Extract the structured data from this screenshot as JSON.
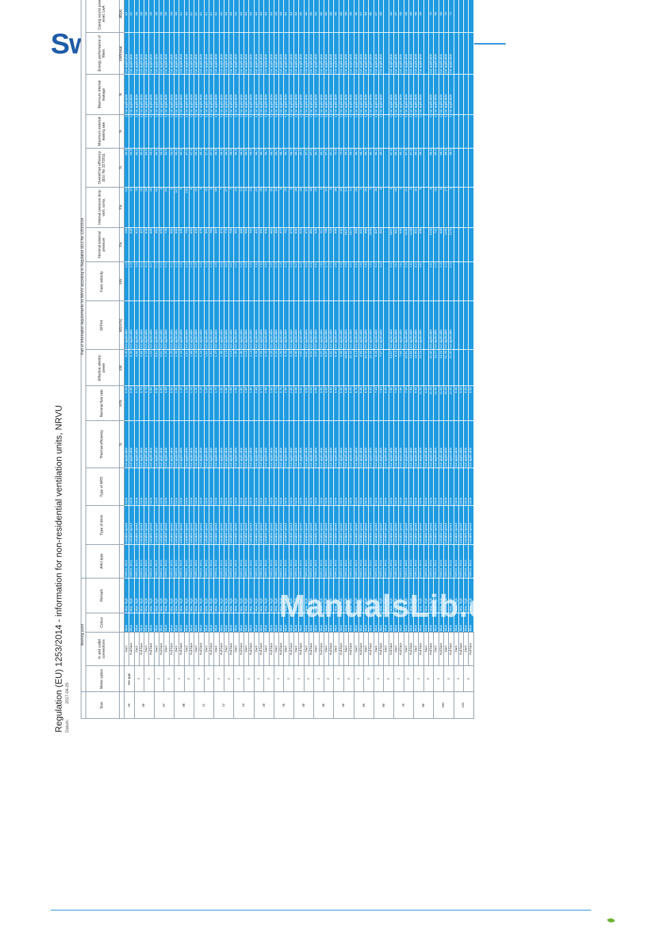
{
  "brand": {
    "name": "Swegon"
  },
  "document": {
    "title": "Regulation (EU) 1253/2014 - information for non-residential ventilation units, NRVU",
    "date_label": "Datum:",
    "date": "2017-04-25"
  },
  "table": {
    "group_header": "Part of information requirements for NRVU according to Regulation (EU) No 1253/2014",
    "working_point": "Working point",
    "columns": [
      "Size",
      "Motor option",
      "In and outlet connections",
      "Colour",
      "Remark",
      "AHU type",
      "Type of drive",
      "Type of HRS",
      "Thermal efficiency",
      "Nominal flow rate",
      "Effective electric power",
      "SFPint",
      "Face velocity",
      "Nominal external pressure",
      "Internal pressure drop vent. comp.",
      "Overall fan efficiency (EU) No 327/2011",
      "Maximum external leaking rate",
      "Maximum internal leakage",
      "Energy performance of filters",
      "Casing sound power level, LwA"
    ],
    "units": [
      "",
      "",
      "",
      "",
      "",
      "",
      "",
      "",
      "%",
      "m³/s",
      "kW",
      "W/(m³/s)",
      "m/s",
      "Pa",
      "Pa",
      "%",
      "%",
      "%",
      "kWh/year",
      "dB(A)"
    ],
    "common": {
      "colour": "Blue",
      "remark": "Max. high",
      "ahu": "NRVU, BVU",
      "drive": "variable speed",
      "hrs": "none",
      "na": "not applicable",
      "ext_leak": "1",
      "duct": "Duct",
      "full_face": "Full face"
    },
    "groups": [
      {
        "size": "04",
        "motors": [
          {
            "option": "Not appl.",
            "rows": [
              [
                "0.00",
                "0.45",
                "2.4",
                "256",
                "54",
                "64.8",
                "52"
              ],
              [
                "0.60",
                "0.45",
                "2.4",
                "338",
                "12",
                "64.8",
                "52"
              ]
            ]
          }
        ]
      },
      {
        "size": "05",
        "motors": [
          {
            "option": "1",
            "rows": [
              [
                "0.72",
                "0.89",
                "2.9",
                "512",
                "79",
                "65.5",
                "56"
              ],
              [
                "0.79",
                "0.84",
                "3.1",
                "407",
                "20",
                "65.5",
                "58"
              ]
            ]
          },
          {
            "option": "2",
            "rows": [
              [
                "0.79",
                "1.15",
                "3.1",
                "649",
                "59",
                "63.5",
                "58"
              ],
              [
                "0.80",
                "1.15",
                "3.2",
                "668",
                "20",
                "63.5",
                "59"
              ]
            ]
          }
        ]
      },
      {
        "size": "07",
        "motors": [
          {
            "option": "1",
            "rows": [
              [
                "0.80",
                "0.81",
                "2.1",
                "483",
                "64",
                "65.5",
                "58"
              ],
              [
                "0.80",
                "0.81",
                "2.1",
                "503",
                "4",
                "65.5",
                "58"
              ]
            ]
          },
          {
            "option": "2",
            "rows": [
              [
                "0.80",
                "1.20",
                "2.1",
                "745",
                "64",
                "63.5",
                "59"
              ],
              [
                "0.80",
                "1.20",
                "2.1",
                "865",
                "4",
                "63.5",
                "59"
              ]
            ]
          }
        ]
      },
      {
        "size": "08",
        "motors": [
          {
            "option": "1",
            "rows": [
              [
                "1.05",
                "1.26",
                "2.1",
                "535",
                "110",
                "65.4",
                "58"
              ],
              [
                "1.20",
                "1.16",
                "2.4",
                "435",
                "9",
                "65.4",
                "61"
              ]
            ]
          },
          {
            "option": "2",
            "rows": [
              [
                "1.20",
                "1.81",
                "2.4",
                "784",
                "130",
                "67.4",
                "60"
              ],
              [
                "1.20",
                "1.58",
                "2.4",
                "893",
                "9",
                "67.4",
                "61"
              ]
            ]
          }
        ]
      },
      {
        "size": "11",
        "motors": [
          {
            "option": "1",
            "rows": [
              [
                "1.20",
                "1.16",
                "2.4",
                "435",
                "43",
                "65.4",
                "61"
              ],
              [
                "1.20",
                "1.16",
                "2.4",
                "475",
                "3",
                "65.4",
                "61"
              ]
            ]
          },
          {
            "option": "2",
            "rows": [
              [
                "1.20",
                "1.81",
                "2.4",
                "863",
                "43",
                "67.4",
                "61"
              ],
              [
                "1.20",
                "1.61",
                "2.4",
                "784",
                "3",
                "67.4",
                "61"
              ]
            ]
          }
        ]
      },
      {
        "size": "12",
        "motors": [
          {
            "option": "1",
            "rows": [
              [
                "1.72",
                "1.47",
                "2.9",
                "387",
                "89",
                "66.8",
                "62"
              ],
              [
                "1.80",
                "1.38",
                "3.0",
                "374",
                "7",
                "66.8",
                "63"
              ]
            ]
          },
          {
            "option": "2",
            "rows": [
              [
                "1.80",
                "2.13",
                "3.0",
                "774",
                "97",
                "66.0",
                "63"
              ],
              [
                "1.80",
                "2.13",
                "3.0",
                "709",
                "7",
                "66.0",
                "64"
              ]
            ]
          }
        ]
      },
      {
        "size": "14",
        "motors": [
          {
            "option": "1",
            "rows": [
              [
                "1.80",
                "1.38",
                "2.4",
                "382",
                "13",
                "66.8",
                "54"
              ],
              [
                "1.80",
                "1.38",
                "2.4",
                "368",
                "13",
                "66.8",
                "64"
              ]
            ]
          },
          {
            "option": "2",
            "rows": [
              [
                "1.80",
                "2.13",
                "2.4",
                "680",
                "13",
                "66.0",
                "64"
              ],
              [
                "1.80",
                "2.13",
                "2.4",
                "704",
                "13",
                "66.0",
                "64"
              ]
            ]
          }
        ]
      },
      {
        "size": "20",
        "motors": [
          {
            "option": "1",
            "rows": [
              [
                "2.68",
                "2.28",
                "2.8",
                "402",
                "42",
                "66.7",
                "63"
              ],
              [
                "2.71",
                "2.25",
                "2.8",
                "392",
                "28",
                "66.7",
                "63"
              ]
            ]
          },
          {
            "option": "2",
            "rows": [
              [
                "2.80",
                "3.28",
                "2.9",
                "635",
                "42",
                "66.7",
                "64"
              ],
              [
                "2.80",
                "3.28",
                "2.9",
                "663",
                "30",
                "66.7",
                "64"
              ]
            ]
          }
        ]
      },
      {
        "size": "25",
        "motors": [
          {
            "option": "1",
            "rows": [
              [
                "2.73",
                "2.22",
                "2.3",
                "384",
                "19",
                "66.7",
                "63"
              ],
              [
                "2.75",
                "2.20",
                "2.3",
                "377",
                "9",
                "66.7",
                "63"
              ]
            ]
          },
          {
            "option": "2",
            "rows": [
              [
                "2.80",
                "3.28",
                "2.4",
                "702",
                "20",
                "66.7",
                "64"
              ],
              [
                "2.80",
                "3.28",
                "2.4",
                "673",
                "9",
                "66.7",
                "64"
              ]
            ]
          }
        ]
      },
      {
        "size": "30",
        "motors": [
          {
            "option": "1",
            "rows": [
              [
                "3.86",
                "4.06",
                "3.2",
                "635",
                "39",
                "65.2",
                "64"
              ],
              [
                "3.92",
                "4.00",
                "3.3",
                "518",
                "18",
                "65.2",
                "65"
              ]
            ]
          },
          {
            "option": "2",
            "rows": [
              [
                "4.00",
                "5.02",
                "3.3",
                "672",
                "42",
                "67.2",
                "65"
              ],
              [
                "4.00",
                "5.02",
                "3.3",
                "662",
                "18",
                "67.2",
                "65"
              ]
            ]
          }
        ]
      },
      {
        "size": "35",
        "motors": [
          {
            "option": "1",
            "rows": [
              [
                "3.90",
                "4.02",
                "2.6",
                "526",
                "23",
                "65.2",
                "64"
              ],
              [
                "3.95",
                "3.97",
                "2.6",
                "511",
                "5",
                "65.2",
                "65"
              ]
            ]
          },
          {
            "option": "2",
            "rows": [
              [
                "4.00",
                "5.02",
                "2.7",
                "780",
                "24",
                "67.2",
                "65"
              ],
              [
                "4.00",
                "5.02",
                "2.7",
                "720",
                "5",
                "67.2",
                "65"
              ]
            ]
          }
        ]
      },
      {
        "size": "40",
        "motors": [
          {
            "option": "1",
            "rows": [
              [
                "5.63",
                "6.30",
                "2.8",
                "599",
                "48",
                "70.5",
                "65"
              ],
              [
                "5.90",
                "5.99",
                "2.9",
                "542",
                "10",
                "70.5",
                "66"
              ]
            ]
          },
          {
            "option": "2",
            "rows": [
              [
                "5.85",
                "10.68",
                "2.9",
                "1037",
                "51",
                "69.2",
                "68"
              ],
              [
                "6.00",
                "10.44",
                "3.0",
                "1017",
                "11",
                "69.2",
                "68"
              ]
            ]
          }
        ]
      },
      {
        "size": "50",
        "motors": [
          {
            "option": "1",
            "rows": [
              [
                "5.78",
                "6.14",
                "2.5",
                "568",
                "28",
                "66.7",
                "66"
              ],
              [
                "5.95",
                "5.93",
                "2.6",
                "531",
                "2",
                "66.7",
                "67"
              ]
            ]
          },
          {
            "option": "2",
            "rows": [
              [
                "6.00",
                "10.44",
                "2.6",
                "988",
                "30",
                "65.7",
                "68"
              ],
              [
                "6.00",
                "10.44",
                "2.6",
                "1006",
                "2",
                "65.7",
                "68"
              ]
            ]
          }
        ]
      },
      {
        "size": "60",
        "motors": [
          {
            "option": "1",
            "rows": [
              [
                "7.33",
                "8.43",
                "3.2",
                "637",
                "45",
                "65.2",
                "67"
              ],
              [
                "7.83",
                "7.87",
                "3.4",
                "552",
                "4",
                "65.2",
                "68"
              ]
            ]
          },
          {
            "option": "2",
            "rows": [
              [
                "0.00",
                "",
                "",
                "",
                "",
                "",
                ""
              ],
              [
                "7.80",
                "14.57",
                "3.4",
                "1097",
                "4",
                "67.4",
                "69"
              ]
            ]
          }
        ]
      },
      {
        "size": "70",
        "motors": [
          {
            "option": "1",
            "rows": [
              [
                "7.60",
                "8.14",
                "2.5",
                "581",
                "25",
                "65.2",
                "67"
              ],
              [
                "7.85",
                "7.84",
                "2.6",
                "548",
                "2",
                "65.2",
                "68"
              ]
            ]
          },
          {
            "option": "2",
            "rows": [
              [
                "7.05",
                "14.91",
                "2.3",
                "1245",
                "21",
                "67.4",
                "68"
              ],
              [
                "7.95",
                "14.84",
                "2.6",
                "1108",
                "2",
                "67.4",
                "69"
              ]
            ]
          }
        ]
      },
      {
        "size": "80",
        "motors": [
          {
            "option": "1",
            "rows": [
              [
                "9.84",
                "13.99",
                "3.2",
                "831",
                "42",
                "69.2",
                "68"
              ],
              [
                "11.00",
                "13.15",
                "3.6",
                "696",
                "3",
                "69.2",
                "69"
              ]
            ]
          },
          {
            "option": "2",
            "rows": [
              [
                "0.00",
                "",
                "",
                "",
                "",
                "",
                ""
              ],
              [
                "11.00",
                "21.60",
                "3.6",
                "1203",
                "3",
                "68.5",
                "70"
              ]
            ]
          }
        ]
      },
      {
        "size": "100",
        "motors": [
          {
            "option": "1",
            "rows": [
              [
                "10.60",
                "13.47",
                "2.2",
                "742",
                "18",
                "69.2",
                "68"
              ],
              [
                "11.00",
                "13.15",
                "2.3",
                "699",
                "0",
                "69.2",
                "69"
              ]
            ]
          },
          {
            "option": "2",
            "rows": [
              [
                "10.30",
                "21.78",
                "2.1",
                "1295",
                "17",
                "68.5",
                "70"
              ],
              [
                "11.00",
                "21.50",
                "2.3",
                "1173",
                "1",
                "68.5",
                "71"
              ]
            ]
          }
        ]
      },
      {
        "size": "120",
        "motors": [
          {
            "option": "1",
            "rows": [
              [
                "0.00",
                "",
                "",
                "",
                "",
                "",
                ""
              ],
              [
                "0.00",
                "",
                "",
                "",
                "",
                "",
                ""
              ]
            ]
          },
          {
            "option": "2",
            "rows": [
              [
                "0.00",
                "",
                "",
                "",
                "",
                "",
                ""
              ],
              [
                "0.00",
                "",
                "",
                "",
                "",
                "",
                ""
              ]
            ]
          }
        ]
      }
    ]
  },
  "watermark": "ManualsLib.de"
}
